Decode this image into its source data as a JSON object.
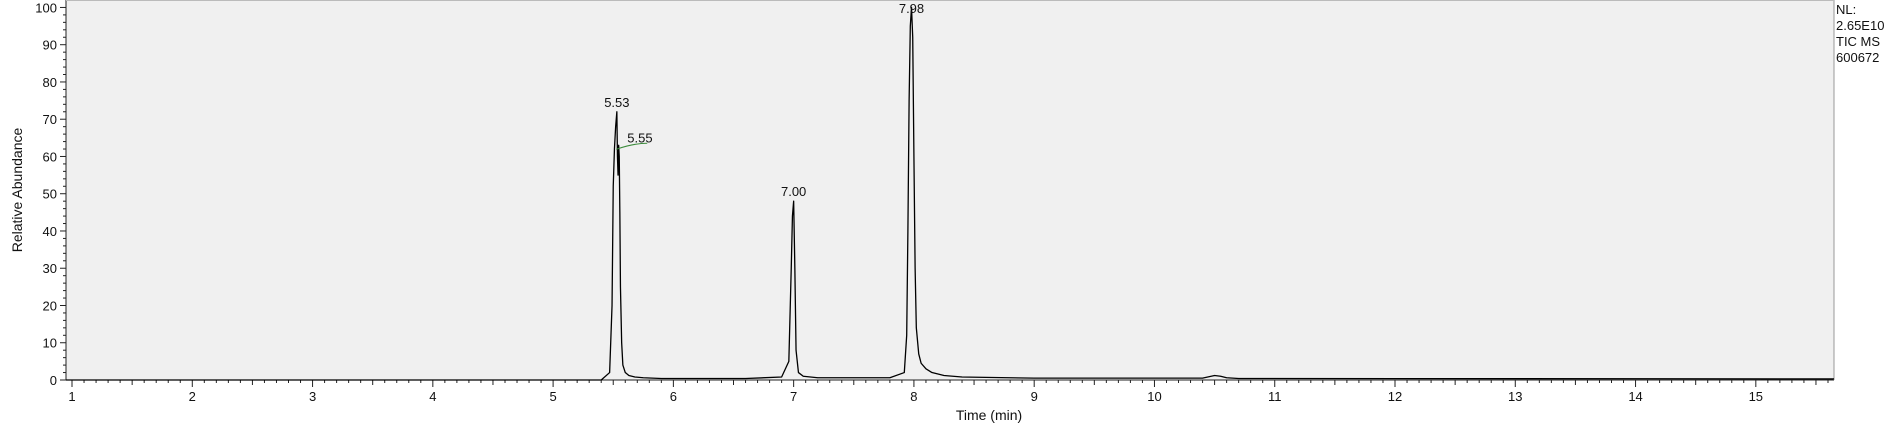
{
  "chart_data": {
    "type": "line",
    "xlabel": "Time (min)",
    "ylabel": "Relative Abundance",
    "xlim": [
      0.95,
      15.65
    ],
    "ylim": [
      0,
      102
    ],
    "x_ticks": [
      1,
      2,
      3,
      4,
      5,
      6,
      7,
      8,
      9,
      10,
      11,
      12,
      13,
      14,
      15
    ],
    "y_ticks": [
      0,
      10,
      20,
      30,
      40,
      50,
      60,
      70,
      80,
      90,
      100
    ],
    "grid": false,
    "legend": null,
    "info_text": [
      "NL:",
      "2.65E10",
      "TIC  MS",
      "600672"
    ],
    "series": [
      {
        "color": "#000000",
        "x": [
          0.95,
          5.4,
          5.47,
          5.49,
          5.5,
          5.51,
          5.52,
          5.53,
          5.535,
          5.54,
          5.545,
          5.55,
          5.555,
          5.56,
          5.57,
          5.58,
          5.6,
          5.63,
          5.68,
          5.75,
          5.9,
          6.6,
          6.9,
          6.96,
          6.98,
          6.99,
          7.0,
          7.01,
          7.02,
          7.04,
          7.08,
          7.2,
          7.8,
          7.92,
          7.94,
          7.95,
          7.96,
          7.97,
          7.98,
          7.99,
          8.0,
          8.01,
          8.02,
          8.04,
          8.06,
          8.1,
          8.15,
          8.25,
          8.4,
          9.0,
          10.4,
          10.5,
          10.55,
          10.6,
          10.7,
          15.65
        ],
        "y": [
          0,
          0,
          2,
          20,
          52,
          62,
          68,
          72,
          60,
          55,
          63,
          60,
          45,
          25,
          10,
          4,
          2,
          1.2,
          0.8,
          0.6,
          0.4,
          0.4,
          0.8,
          5,
          30,
          44,
          48,
          30,
          8,
          2,
          1,
          0.6,
          0.6,
          2,
          12,
          40,
          75,
          95,
          100,
          92,
          60,
          30,
          14,
          7,
          4.5,
          3,
          2,
          1.2,
          0.8,
          0.5,
          0.5,
          1.2,
          1.0,
          0.6,
          0.4,
          0.3
        ]
      }
    ],
    "annotations": [
      {
        "label": "5.53",
        "x": 5.53,
        "y": 72
      },
      {
        "label": "5.55",
        "x": 5.55,
        "y": 63
      },
      {
        "label": "7.00",
        "x": 7.0,
        "y": 48
      },
      {
        "label": "7.98",
        "x": 7.98,
        "y": 100
      }
    ]
  }
}
